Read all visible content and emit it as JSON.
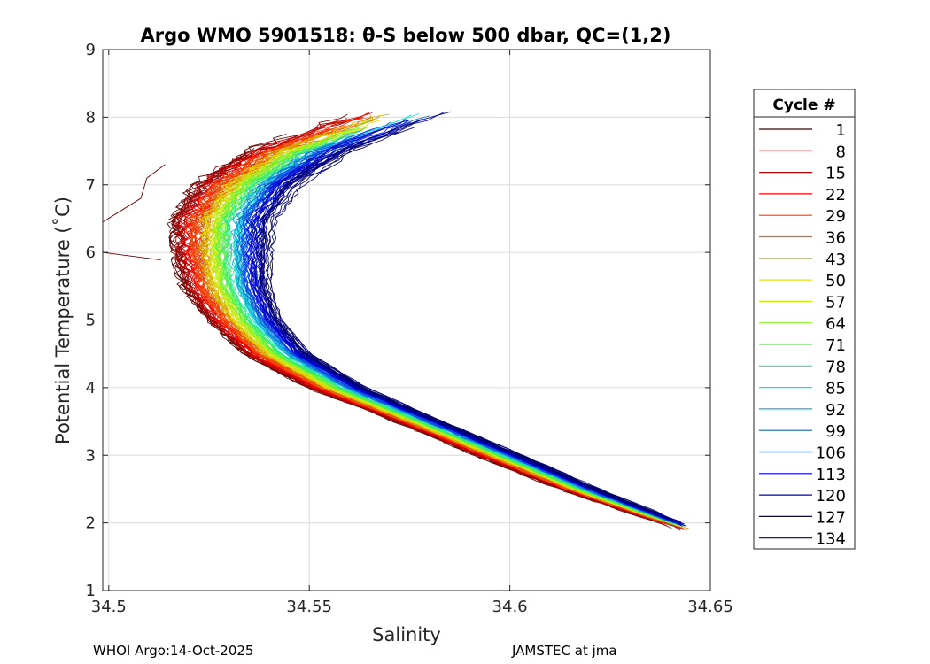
{
  "chart_data": {
    "type": "line",
    "title": "Argo WMO 5901518: θ-S below 500 dbar,  QC=(1,2)",
    "xlabel": "Salinity",
    "ylabel": "Potential Temperature (˚C)",
    "xlim": [
      34.4985,
      34.65
    ],
    "ylim": [
      1,
      9
    ],
    "x_ticks": [
      34.5,
      34.55,
      34.6,
      34.65
    ],
    "x_tick_labels": [
      "34.5",
      "34.55",
      "34.6",
      "34.65"
    ],
    "y_ticks": [
      1,
      2,
      3,
      4,
      5,
      6,
      7,
      8,
      9
    ],
    "y_tick_labels": [
      "1",
      "2",
      "3",
      "4",
      "5",
      "6",
      "7",
      "8",
      "9"
    ],
    "grid": true,
    "legend": {
      "title": "Cycle #",
      "placement": "right",
      "entries": [
        {
          "label": "1",
          "color": "#400000"
        },
        {
          "label": "8",
          "color": "#8a0000"
        },
        {
          "label": "15",
          "color": "#c80000"
        },
        {
          "label": "22",
          "color": "#ff0000"
        },
        {
          "label": "29",
          "color": "#ff3a00"
        },
        {
          "label": "36",
          "color": "#d96a00"
        },
        {
          "label": "43",
          "color": "#d8a800"
        },
        {
          "label": "50",
          "color": "#e6e600"
        },
        {
          "label": "57",
          "color": "#c8ec1a"
        },
        {
          "label": "64",
          "color": "#8cf22a"
        },
        {
          "label": "71",
          "color": "#48f048"
        },
        {
          "label": "78",
          "color": "#28e6a0"
        },
        {
          "label": "85",
          "color": "#1cdcdc"
        },
        {
          "label": "92",
          "color": "#17a8e6"
        },
        {
          "label": "99",
          "color": "#1060c8"
        },
        {
          "label": "106",
          "color": "#0a3cff"
        },
        {
          "label": "113",
          "color": "#0000dc"
        },
        {
          "label": "120",
          "color": "#0000aa"
        },
        {
          "label": "127",
          "color": "#000080"
        },
        {
          "label": "134",
          "color": "#000060"
        }
      ]
    },
    "series_template": {
      "min_cycle": 1,
      "max_cycle": 134,
      "count": 134,
      "temperature_levels": [
        2.0,
        2.5,
        3.0,
        3.5,
        4.0,
        4.5,
        5.0,
        5.5,
        6.0,
        6.5,
        7.0,
        7.5,
        7.9
      ],
      "salinity_early": [
        34.638,
        34.613,
        34.592,
        34.572,
        34.55,
        34.534,
        34.525,
        34.519,
        34.517,
        34.517,
        34.523,
        34.536,
        34.555
      ],
      "salinity_late": [
        34.643,
        34.622,
        34.603,
        34.583,
        34.564,
        34.55,
        34.543,
        34.54,
        34.54,
        34.541,
        34.547,
        34.56,
        34.578
      ]
    }
  },
  "footer": {
    "left": "WHOI Argo:14-Oct-2025",
    "right": "JAMSTEC at jma"
  }
}
